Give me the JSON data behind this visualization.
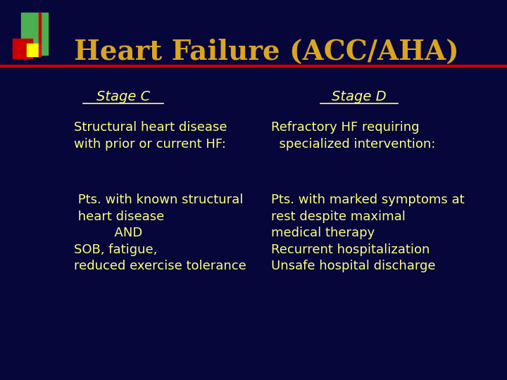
{
  "title": "Heart Failure (ACC/AHA)",
  "title_color": "#DAA520",
  "background_color": "#06063A",
  "red_line_color": "#CC0000",
  "stage_c_label": "Stage C",
  "stage_d_label": "Stage D",
  "stage_label_color": "#FFFF80",
  "stage_c_sub1": "Structural heart disease\nwith prior or current HF:",
  "stage_c_sub2": " Pts. with known structural\n heart disease\n          AND\nSOB, fatigue,\nreduced exercise tolerance",
  "stage_d_sub1": "Refractory HF requiring\n  specialized intervention:",
  "stage_d_sub2": "Pts. with marked symptoms at\nrest despite maximal\nmedical therapy\nRecurrent hospitalization\nUnsafe hospital discharge",
  "body_text_color": "#FFFF80",
  "logo_green": "#4CAF50",
  "logo_red": "#CC0000",
  "logo_yellow": "#FFFF00",
  "logo_dark_red": "#8B0000"
}
